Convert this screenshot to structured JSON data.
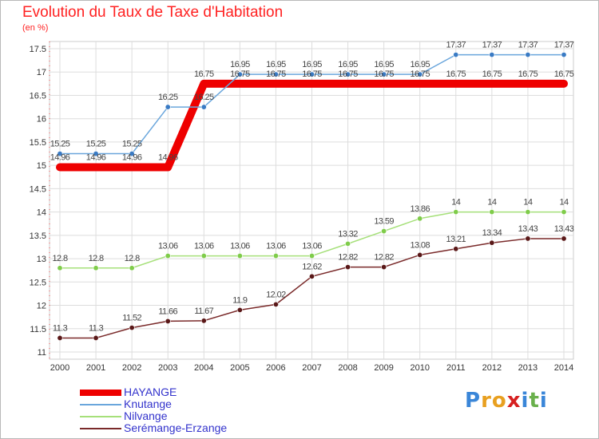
{
  "header": {
    "title": "Evolution du Taux de Taxe d'Habitation",
    "subtitle": "(en %)"
  },
  "logo": {
    "text": "Proxiti",
    "letters": [
      {
        "ch": "P",
        "color": "#3a86d8"
      },
      {
        "ch": "r",
        "color": "#e8a020"
      },
      {
        "ch": "o",
        "color": "#e8a020"
      },
      {
        "ch": "x",
        "color": "#d62020"
      },
      {
        "ch": "i",
        "color": "#3a86d8"
      },
      {
        "ch": "t",
        "color": "#6ab04c"
      },
      {
        "ch": "i",
        "color": "#3a86d8"
      }
    ]
  },
  "chart_data": {
    "type": "line",
    "title": "Evolution du Taux de Taxe d'Habitation",
    "ylabel": "(en %)",
    "x": [
      "2000",
      "2001",
      "2002",
      "2003",
      "2004",
      "2005",
      "2006",
      "2007",
      "2008",
      "2009",
      "2010",
      "2011",
      "2012",
      "2013",
      "2014"
    ],
    "ylim": [
      11,
      17.5
    ],
    "yticks": [
      "11",
      "11.5",
      "12",
      "12.5",
      "13",
      "13.5",
      "14",
      "14.5",
      "15",
      "15.5",
      "16",
      "16.5",
      "17",
      "17.5"
    ],
    "grid": true,
    "legend_position": "bottom-left",
    "series": [
      {
        "name": "HAYANGE",
        "color": "#ee0000",
        "width": 10,
        "marker": "none",
        "values": [
          14.96,
          14.96,
          14.96,
          14.96,
          16.75,
          16.75,
          16.75,
          16.75,
          16.75,
          16.75,
          16.75,
          16.75,
          16.75,
          16.75,
          16.75
        ],
        "labels": [
          "14.96",
          "14.96",
          "14.96",
          "14.96",
          "16.75",
          "16.75",
          "16.75",
          "16.75",
          "16.75",
          "16.75",
          "16.75",
          "16.75",
          "16.75",
          "16.75",
          "16.75"
        ]
      },
      {
        "name": "Knutange",
        "color": "#6aa6dc",
        "width": 1.5,
        "marker": "#3a7bc4",
        "values": [
          15.25,
          15.25,
          15.25,
          16.25,
          16.25,
          16.95,
          16.95,
          16.95,
          16.95,
          16.95,
          16.95,
          17.37,
          17.37,
          17.37,
          17.37
        ],
        "labels": [
          "15.25",
          "15.25",
          "15.25",
          "16.25",
          "16.25",
          "16.95",
          "16.95",
          "16.95",
          "16.95",
          "16.95",
          "16.95",
          "17.37",
          "17.37",
          "17.37",
          "17.37"
        ]
      },
      {
        "name": "Nilvange",
        "color": "#a6e07a",
        "width": 1.5,
        "marker": "#7fcc4a",
        "values": [
          12.8,
          12.8,
          12.8,
          13.06,
          13.06,
          13.06,
          13.06,
          13.06,
          13.32,
          13.59,
          13.86,
          14,
          14,
          14,
          14
        ],
        "labels": [
          "12.8",
          "12.8",
          "12.8",
          "13.06",
          "13.06",
          "13.06",
          "13.06",
          "13.06",
          "13.32",
          "13.59",
          "13.86",
          "14",
          "14",
          "14",
          "14"
        ]
      },
      {
        "name": "Serémange-Erzange",
        "color": "#7a2a2a",
        "width": 1.5,
        "marker": "#5a1818",
        "values": [
          11.3,
          11.3,
          11.52,
          11.66,
          11.67,
          11.9,
          12.02,
          12.62,
          12.82,
          12.82,
          13.08,
          13.21,
          13.34,
          13.43,
          13.43
        ],
        "labels": [
          "11.3",
          "11.3",
          "11.52",
          "11.66",
          "11.67",
          "11.9",
          "12.02",
          "12.62",
          "12.82",
          "12.82",
          "13.08",
          "13.21",
          "13.34",
          "13.43",
          "13.43"
        ]
      }
    ]
  }
}
